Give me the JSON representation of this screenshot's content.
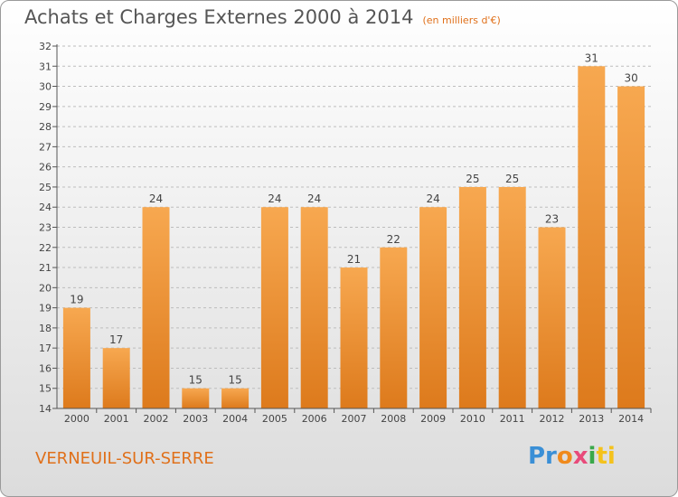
{
  "title": "Achats et Charges Externes 2000 à 2014",
  "subtitle": "(en milliers d'€)",
  "city": "VERNEUIL-SUR-SERRE",
  "logo": {
    "p1": "Pr",
    "p2": "o",
    "p3": "x",
    "p4": "i",
    "p5": "ti"
  },
  "colors": {
    "bar_light": "#f7a850",
    "bar_dark": "#dd7a1c",
    "grid": "#bdbdbd",
    "accent": "#e0701a"
  },
  "chart_data": {
    "type": "bar",
    "title": "Achats et Charges Externes 2000 à 2014",
    "xlabel": "",
    "ylabel": "",
    "categories": [
      "2000",
      "2001",
      "2002",
      "2003",
      "2004",
      "2005",
      "2006",
      "2007",
      "2008",
      "2009",
      "2010",
      "2011",
      "2012",
      "2013",
      "2014"
    ],
    "values": [
      19,
      17,
      24,
      15,
      15,
      24,
      24,
      21,
      22,
      24,
      25,
      25,
      23,
      31,
      30
    ],
    "ylim": [
      14,
      32
    ],
    "yticks": [
      14,
      15,
      16,
      17,
      18,
      19,
      20,
      21,
      22,
      23,
      24,
      25,
      26,
      27,
      28,
      29,
      30,
      31,
      32
    ],
    "grid": true
  }
}
